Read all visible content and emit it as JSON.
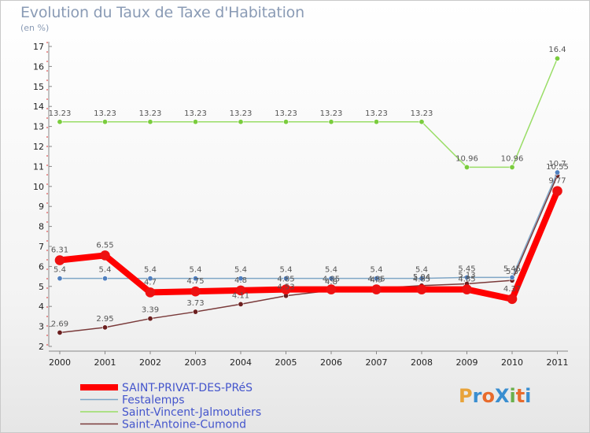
{
  "title": "Evolution du Taux de Taxe d'Habitation",
  "unit": "(en %)",
  "logo": {
    "text": "ProXiti",
    "colors": [
      "#e8a33a",
      "#3a8ed0",
      "#e86b2c",
      "#3a8ed0",
      "#6ab04c",
      "#e86b2c",
      "#3a8ed0"
    ]
  },
  "chart_data": {
    "type": "line",
    "title": "Evolution du Taux de Taxe d'Habitation",
    "ylabel": "(en %)",
    "xlabel": "",
    "x": [
      "2000",
      "2001",
      "2002",
      "2003",
      "2004",
      "2005",
      "2006",
      "2007",
      "2008",
      "2009",
      "2010",
      "2011"
    ],
    "ylim": [
      2,
      17
    ],
    "yticks": [
      2,
      3,
      4,
      5,
      6,
      7,
      8,
      9,
      10,
      11,
      12,
      13,
      14,
      15,
      16,
      17
    ],
    "grid": false,
    "legend": "bottom-left",
    "series": [
      {
        "name": "SAINT-PRIVAT-DES-PRéS",
        "color": "#ff0000",
        "marker": "#ee1111",
        "width": 8,
        "values": [
          6.31,
          6.55,
          4.7,
          4.75,
          4.8,
          4.85,
          4.85,
          4.85,
          4.85,
          4.85,
          4.37,
          9.77
        ],
        "labels": [
          "6.31",
          "6.55",
          "4.7",
          "4.75",
          "4.8",
          "4.85",
          "4.85",
          "4.85",
          "4.85",
          "4.85",
          "4.37",
          "9.77"
        ]
      },
      {
        "name": "Festalemps",
        "color": "#7fa6c6",
        "marker": "#4f7fbf",
        "width": 1.5,
        "values": [
          5.4,
          5.4,
          5.4,
          5.4,
          5.4,
          5.4,
          5.4,
          5.4,
          5.4,
          5.45,
          5.45,
          10.7
        ],
        "labels": [
          "5.4",
          "5.4",
          "5.4",
          "5.4",
          "5.4",
          "5.4",
          "5.4",
          "5.4",
          "5.4",
          "5.45",
          "5.45",
          "10.7"
        ]
      },
      {
        "name": "Saint-Vincent-Jalmoutiers",
        "color": "#99dd66",
        "marker": "#7acc3d",
        "width": 1.5,
        "values": [
          13.23,
          13.23,
          13.23,
          13.23,
          13.23,
          13.23,
          13.23,
          13.23,
          13.23,
          10.96,
          10.96,
          16.4
        ],
        "labels": [
          "13.23",
          "13.23",
          "13.23",
          "13.23",
          "13.23",
          "13.23",
          "13.23",
          "13.23",
          "13.23",
          "10.96",
          "10.96",
          "16.4"
        ]
      },
      {
        "name": "Saint-Antoine-Cumond",
        "color": "#7a3a3a",
        "marker": "#6b1f1f",
        "width": 1.5,
        "values": [
          2.69,
          2.95,
          3.39,
          3.73,
          4.11,
          4.53,
          4.8,
          4.9,
          5.04,
          5.13,
          5.3,
          10.55
        ],
        "labels": [
          "2.69",
          "2.95",
          "3.39",
          "3.73",
          "4.11",
          "4.53",
          "4.8",
          "4.9",
          "5.04",
          "5.13",
          "5.3",
          "10.55"
        ]
      }
    ]
  }
}
